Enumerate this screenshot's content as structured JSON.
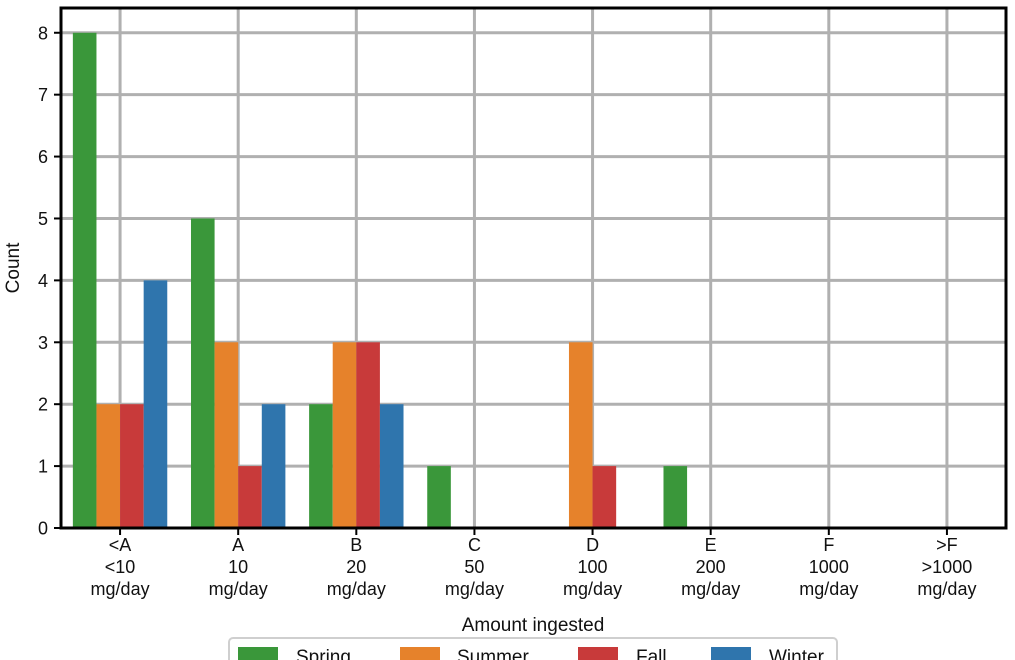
{
  "chart_data": {
    "type": "bar",
    "title": "",
    "xlabel": "Amount ingested",
    "ylabel": "Count",
    "ylim": [
      0,
      8.4
    ],
    "yticks": [
      0,
      1,
      2,
      3,
      4,
      5,
      6,
      7,
      8
    ],
    "grid": true,
    "legend_position": "bottom-center",
    "categories": [
      [
        "<A",
        "<10",
        "mg/day"
      ],
      [
        "A",
        "10",
        "mg/day"
      ],
      [
        "B",
        "20",
        "mg/day"
      ],
      [
        "C",
        "50",
        "mg/day"
      ],
      [
        "D",
        "100",
        "mg/day"
      ],
      [
        "E",
        "200",
        "mg/day"
      ],
      [
        "F",
        "1000",
        "mg/day"
      ],
      [
        ">F",
        ">1000",
        "mg/day"
      ]
    ],
    "series": [
      {
        "name": "Spring",
        "color": "#3a973a",
        "values": [
          8,
          5,
          2,
          1,
          0,
          1,
          0,
          0
        ]
      },
      {
        "name": "Summer",
        "color": "#e6822b",
        "values": [
          2,
          3,
          3,
          0,
          3,
          0,
          0,
          0
        ]
      },
      {
        "name": "Fall",
        "color": "#c83a3a",
        "values": [
          2,
          1,
          3,
          0,
          1,
          0,
          0,
          0
        ]
      },
      {
        "name": "Winter",
        "color": "#2f75ad",
        "values": [
          4,
          2,
          2,
          0,
          0,
          0,
          0,
          0
        ]
      }
    ]
  }
}
